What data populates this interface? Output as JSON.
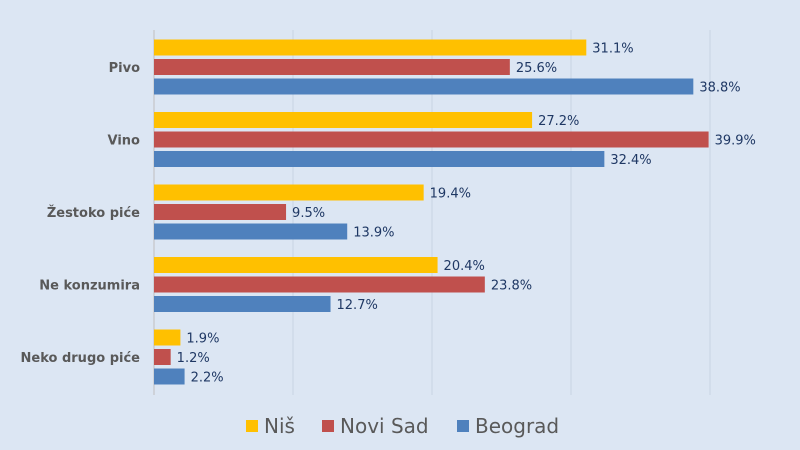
{
  "chart_data": {
    "type": "bar",
    "orientation": "horizontal",
    "categories": [
      "Pivo",
      "Vino",
      "Žestoko piće",
      "Ne konzumira",
      "Neko drugo piće"
    ],
    "series": [
      {
        "name": "Niš",
        "color": "#ffc000",
        "values": [
          31.1,
          27.2,
          19.4,
          20.4,
          1.9
        ],
        "labels": [
          "31.1%",
          "27.2%",
          "19.4%",
          "20.4%",
          "1.9%"
        ]
      },
      {
        "name": "Novi Sad",
        "color": "#c0504d",
        "values": [
          25.6,
          39.9,
          9.5,
          23.8,
          1.2
        ],
        "labels": [
          "25.6%",
          "39.9%",
          "9.5%",
          "23.8%",
          "1.2%"
        ]
      },
      {
        "name": "Beograd",
        "color": "#4f81bd",
        "values": [
          38.8,
          32.4,
          13.9,
          12.7,
          2.2
        ],
        "labels": [
          "38.8%",
          "32.4%",
          "13.9%",
          "12.7%",
          "2.2%"
        ]
      }
    ],
    "xlim": [
      0,
      40
    ],
    "x_gridlines": [
      0,
      10,
      20,
      30,
      40
    ],
    "grid": true,
    "x_tick_labels_shown": false,
    "legend_position": "bottom",
    "background_color": "#dce6f3"
  }
}
